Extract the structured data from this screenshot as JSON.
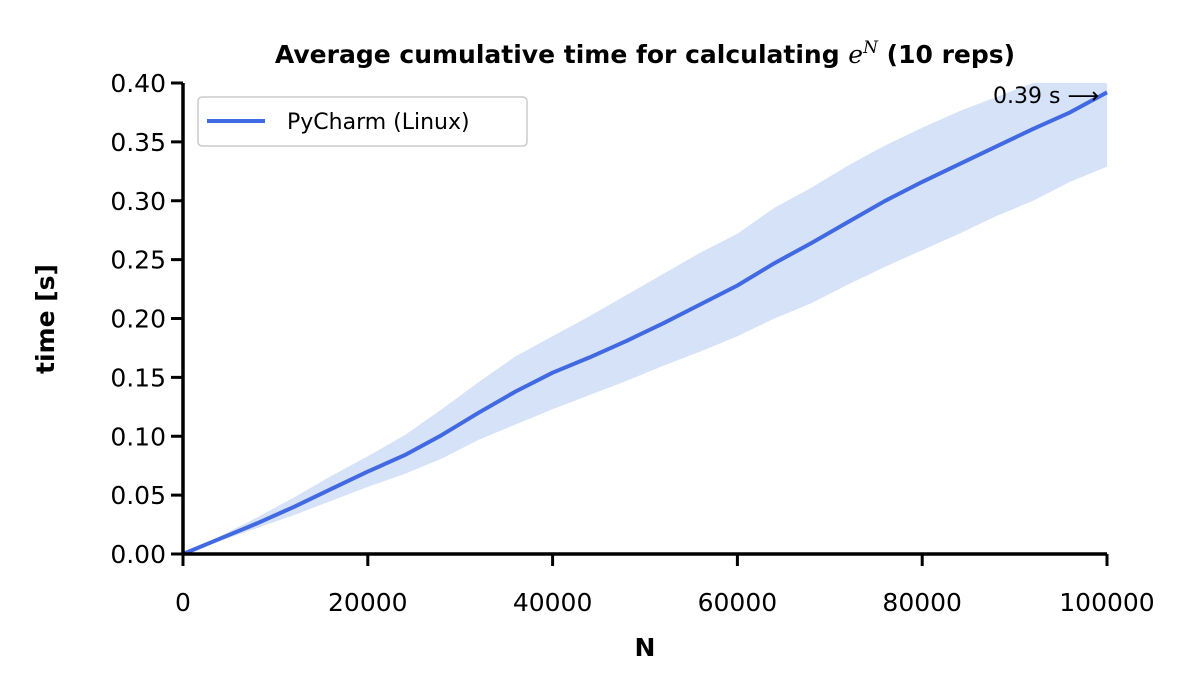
{
  "chart_data": {
    "type": "line",
    "title": "Average cumulative time for calculating e^N (10 reps)",
    "title_parts": {
      "prefix": "Average cumulative time for calculating ",
      "base": "e",
      "sup": "N",
      "suffix": " (10 reps)"
    },
    "xlabel": "N",
    "ylabel": "time [s]",
    "xlim": [
      0,
      100000
    ],
    "ylim": [
      0,
      0.4
    ],
    "xticks": [
      "0",
      "20000",
      "40000",
      "60000",
      "80000",
      "100000"
    ],
    "xtick_values": [
      0,
      20000,
      40000,
      60000,
      80000,
      100000
    ],
    "yticks": [
      "0.00",
      "0.05",
      "0.10",
      "0.15",
      "0.20",
      "0.25",
      "0.30",
      "0.35",
      "0.40"
    ],
    "ytick_values": [
      0,
      0.05,
      0.1,
      0.15,
      0.2,
      0.25,
      0.3,
      0.35,
      0.4
    ],
    "grid": false,
    "legend_position": "upper-left",
    "series": [
      {
        "name": "PyCharm (Linux)",
        "color": "#4169e1",
        "band_color": "#d6e2f8",
        "x": [
          0,
          4000,
          8000,
          12000,
          16000,
          20000,
          24000,
          28000,
          32000,
          36000,
          40000,
          44000,
          48000,
          52000,
          56000,
          60000,
          64000,
          68000,
          72000,
          76000,
          80000,
          84000,
          88000,
          92000,
          96000,
          100000
        ],
        "y": [
          0,
          0.013,
          0.026,
          0.04,
          0.055,
          0.07,
          0.084,
          0.101,
          0.12,
          0.138,
          0.154,
          0.167,
          0.181,
          0.196,
          0.212,
          0.228,
          0.247,
          0.264,
          0.282,
          0.3,
          0.316,
          0.331,
          0.346,
          0.361,
          0.375,
          0.392
        ],
        "y_upper": [
          0,
          0.015,
          0.031,
          0.048,
          0.066,
          0.083,
          0.101,
          0.123,
          0.146,
          0.168,
          0.185,
          0.202,
          0.22,
          0.238,
          0.256,
          0.272,
          0.294,
          0.311,
          0.33,
          0.347,
          0.362,
          0.376,
          0.388,
          0.4,
          0.4,
          0.4
        ],
        "y_lower": [
          0,
          0.011,
          0.022,
          0.033,
          0.045,
          0.057,
          0.068,
          0.081,
          0.097,
          0.11,
          0.123,
          0.135,
          0.147,
          0.16,
          0.172,
          0.185,
          0.2,
          0.213,
          0.229,
          0.244,
          0.258,
          0.272,
          0.287,
          0.3,
          0.316,
          0.329
        ]
      }
    ],
    "annotations": [
      {
        "text": "0.39 s ⟶",
        "x": 100000,
        "y": 0.39
      }
    ]
  }
}
